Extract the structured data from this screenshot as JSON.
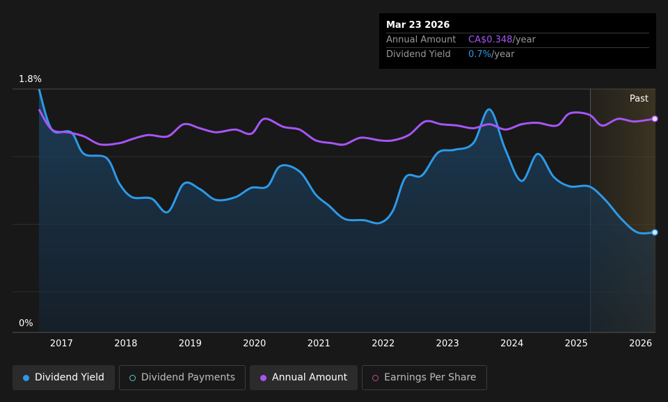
{
  "chart_data": {
    "type": "line",
    "title": "",
    "y_tick_labels": [
      "1.8%",
      "0%"
    ],
    "ylim": [
      0,
      1.8
    ],
    "x_tick_labels": [
      "2017",
      "2018",
      "2019",
      "2020",
      "2021",
      "2022",
      "2023",
      "2024",
      "2025",
      "2026"
    ],
    "xlim": [
      2016.65,
      2026.22
    ],
    "forecast_region_start": 2025.22,
    "forecast_label": "Past",
    "grid": true,
    "series": [
      {
        "name": "Dividend Yield",
        "color": "#2d9ae8",
        "x": [
          2016.65,
          2016.85,
          2017.15,
          2017.35,
          2017.7,
          2017.9,
          2018.1,
          2018.4,
          2018.65,
          2018.9,
          2019.15,
          2019.4,
          2019.7,
          2019.95,
          2020.2,
          2020.4,
          2020.7,
          2020.95,
          2021.15,
          2021.4,
          2021.7,
          2021.95,
          2022.15,
          2022.35,
          2022.6,
          2022.85,
          2023.1,
          2023.4,
          2023.65,
          2023.9,
          2024.15,
          2024.4,
          2024.65,
          2024.9,
          2025.2,
          2025.45,
          2025.7,
          2025.95,
          2026.22
        ],
        "values": [
          1.8,
          1.5,
          1.48,
          1.32,
          1.29,
          1.1,
          1.0,
          0.99,
          0.89,
          1.1,
          1.06,
          0.98,
          1.0,
          1.07,
          1.08,
          1.23,
          1.19,
          1.02,
          0.94,
          0.84,
          0.83,
          0.81,
          0.9,
          1.15,
          1.16,
          1.33,
          1.35,
          1.4,
          1.65,
          1.35,
          1.12,
          1.32,
          1.15,
          1.08,
          1.08,
          0.98,
          0.84,
          0.74,
          0.74
        ]
      },
      {
        "name": "Annual Amount",
        "color": "#a855f7",
        "x": [
          2016.65,
          2016.85,
          2017.1,
          2017.35,
          2017.6,
          2017.9,
          2018.1,
          2018.35,
          2018.65,
          2018.9,
          2019.15,
          2019.4,
          2019.7,
          2019.95,
          2020.15,
          2020.45,
          2020.7,
          2020.95,
          2021.2,
          2021.4,
          2021.65,
          2021.95,
          2022.15,
          2022.4,
          2022.65,
          2022.9,
          2023.15,
          2023.4,
          2023.65,
          2023.9,
          2024.15,
          2024.4,
          2024.7,
          2024.9,
          2025.2,
          2025.4,
          2025.65,
          2025.9,
          2026.22
        ],
        "values": [
          1.65,
          1.5,
          1.48,
          1.45,
          1.39,
          1.4,
          1.43,
          1.46,
          1.45,
          1.54,
          1.51,
          1.48,
          1.5,
          1.47,
          1.58,
          1.52,
          1.5,
          1.42,
          1.4,
          1.39,
          1.44,
          1.42,
          1.42,
          1.46,
          1.56,
          1.54,
          1.53,
          1.51,
          1.54,
          1.5,
          1.54,
          1.55,
          1.53,
          1.62,
          1.61,
          1.53,
          1.58,
          1.56,
          1.58
        ]
      }
    ],
    "tooltip": {
      "date": "Mar 23 2026",
      "rows": [
        {
          "label": "Annual Amount",
          "value": "CA$0.348",
          "unit": "/year"
        },
        {
          "label": "Dividend Yield",
          "value": "0.7%",
          "unit": "/year"
        }
      ]
    },
    "legend": [
      {
        "label": "Dividend Yield",
        "color": "#2d9ae8",
        "filled": true,
        "active": true
      },
      {
        "label": "Dividend Payments",
        "color": "#4fd1c5",
        "filled": false,
        "active": false
      },
      {
        "label": "Annual Amount",
        "color": "#a855f7",
        "filled": true,
        "active": true
      },
      {
        "label": "Earnings Per Share",
        "color": "#c0508a",
        "filled": false,
        "active": false
      }
    ]
  }
}
